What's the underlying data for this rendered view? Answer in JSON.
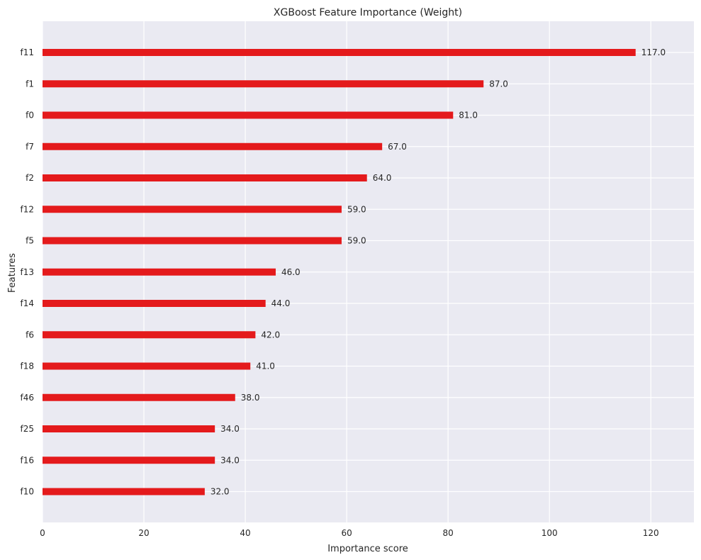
{
  "chart_data": {
    "type": "bar",
    "orientation": "horizontal",
    "title": "XGBoost Feature Importance (Weight)",
    "xlabel": "Importance score",
    "ylabel": "Features",
    "categories": [
      "f11",
      "f1",
      "f0",
      "f7",
      "f2",
      "f12",
      "f5",
      "f13",
      "f14",
      "f6",
      "f18",
      "f46",
      "f25",
      "f16",
      "f10"
    ],
    "values": [
      117,
      87,
      81,
      67,
      64,
      59,
      59,
      46,
      44,
      42,
      41,
      38,
      34,
      34,
      32
    ],
    "value_labels": [
      "117.0",
      "87.0",
      "81.0",
      "67.0",
      "64.0",
      "59.0",
      "59.0",
      "46.0",
      "44.0",
      "42.0",
      "41.0",
      "38.0",
      "34.0",
      "34.0",
      "32.0"
    ],
    "xticks": [
      "0",
      "20",
      "40",
      "60",
      "80",
      "100",
      "120"
    ],
    "xlim": [
      0,
      128.5
    ],
    "grid": true,
    "colors": {
      "bar": "#e41a1c",
      "plot_background": "#eaeaf2",
      "grid": "#ffffff"
    }
  }
}
